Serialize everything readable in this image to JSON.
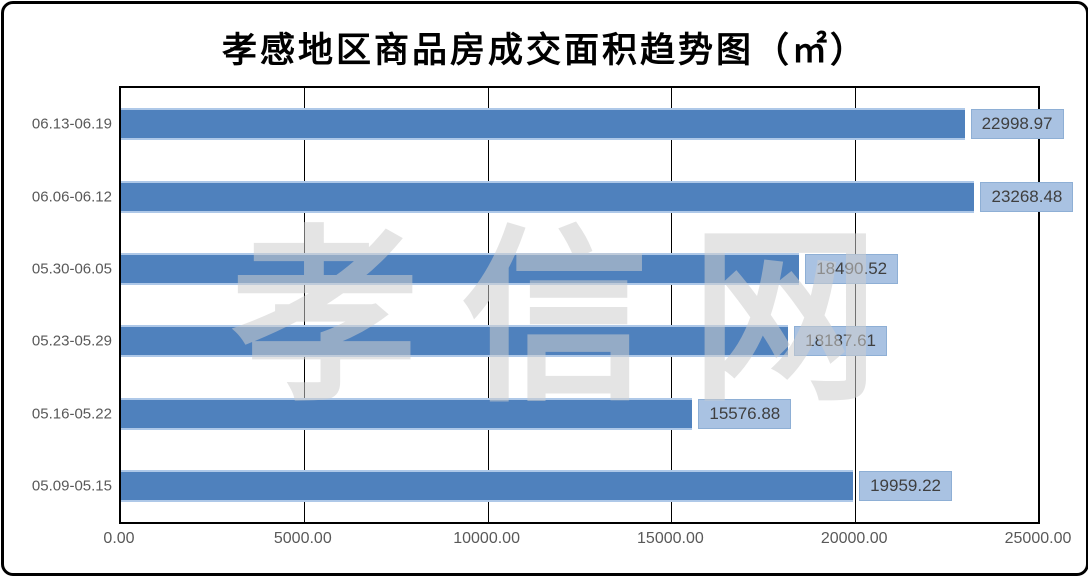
{
  "title": "孝感地区商品房成交面积趋势图（㎡）",
  "watermark": "孝信网",
  "colors": {
    "bar_fill": "#4F81BD",
    "bar_edge": "#AEC8E8",
    "value_label_bg": "#A9C2E2",
    "value_label_border": "#8EAFD5",
    "value_label_text": "#3F3F3F",
    "axis_text": "#595959",
    "gridline": "#000000"
  },
  "chart_data": {
    "type": "bar",
    "orientation": "horizontal",
    "title": "孝感地区商品房成交面积趋势图（㎡）",
    "categories": [
      "06.13-06.19",
      "06.06-06.12",
      "05.30-06.05",
      "05.23-05.29",
      "05.16-05.22",
      "05.09-05.15"
    ],
    "values": [
      22998.97,
      23268.48,
      18490.52,
      18187.61,
      15576.88,
      19959.22
    ],
    "value_labels": [
      "22998.97",
      "23268.48",
      "18490.52",
      "18187.61",
      "15576.88",
      "19959.22"
    ],
    "xlim": [
      0,
      25000
    ],
    "x_ticks": [
      "0.00",
      "5000.00",
      "10000.00",
      "15000.00",
      "20000.00",
      "25000.00"
    ],
    "xlabel": "",
    "ylabel": "",
    "grid": true,
    "legend": "none",
    "watermark": "孝信网"
  }
}
